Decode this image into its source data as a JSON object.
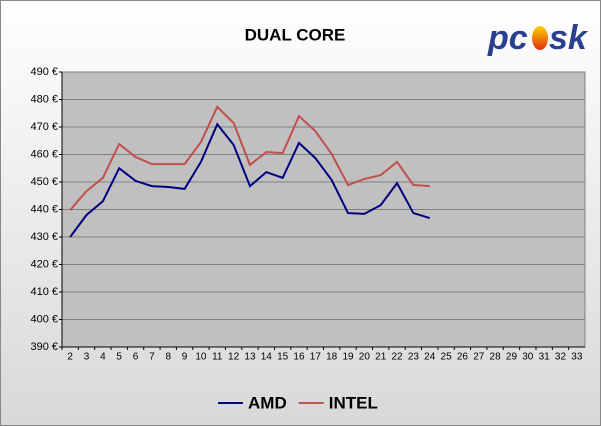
{
  "logo": {
    "left": "pc",
    "right": "sk"
  },
  "chart_data": {
    "type": "line",
    "title": "DUAL CORE",
    "categories": [
      2,
      3,
      4,
      5,
      6,
      7,
      8,
      9,
      10,
      11,
      12,
      13,
      14,
      15,
      16,
      17,
      18,
      19,
      20,
      21,
      22,
      23,
      24,
      25,
      26,
      27,
      28,
      29,
      30,
      31,
      32,
      33
    ],
    "series": [
      {
        "name": "AMD",
        "color": "#000080",
        "values": [
          430.0,
          438.0,
          443.0,
          455.0,
          450.4,
          448.5,
          448.2,
          447.5,
          457.3,
          471.0,
          463.5,
          448.5,
          453.6,
          451.5,
          464.2,
          458.7,
          450.7,
          438.7,
          438.4,
          441.6,
          449.6,
          438.7,
          436.9,
          null,
          null,
          null,
          null,
          null,
          null,
          null,
          null,
          null
        ]
      },
      {
        "name": "INTEL",
        "color": "#c0504d",
        "values": [
          439.8,
          446.7,
          451.5,
          463.8,
          459.1,
          456.5,
          456.5,
          456.5,
          464.5,
          477.3,
          471.5,
          456.2,
          460.9,
          460.5,
          474.0,
          468.5,
          460.2,
          448.9,
          451.1,
          452.5,
          457.3,
          448.9,
          448.5,
          null,
          null,
          null,
          null,
          null,
          null,
          null,
          null,
          null
        ]
      }
    ],
    "ylim": [
      390,
      490
    ],
    "yticks": [
      {
        "value": 390,
        "label": "390 €"
      },
      {
        "value": 400,
        "label": "400 €"
      },
      {
        "value": 410,
        "label": "410 €"
      },
      {
        "value": 420,
        "label": "420 €"
      },
      {
        "value": 430,
        "label": "430 €"
      },
      {
        "value": 440,
        "label": "440 €"
      },
      {
        "value": 450,
        "label": "450 €"
      },
      {
        "value": 460,
        "label": "460 €"
      },
      {
        "value": 470,
        "label": "470 €"
      },
      {
        "value": 480,
        "label": "480 €"
      },
      {
        "value": 490,
        "label": "490 €"
      }
    ],
    "grid": true,
    "legend": "bottom"
  }
}
